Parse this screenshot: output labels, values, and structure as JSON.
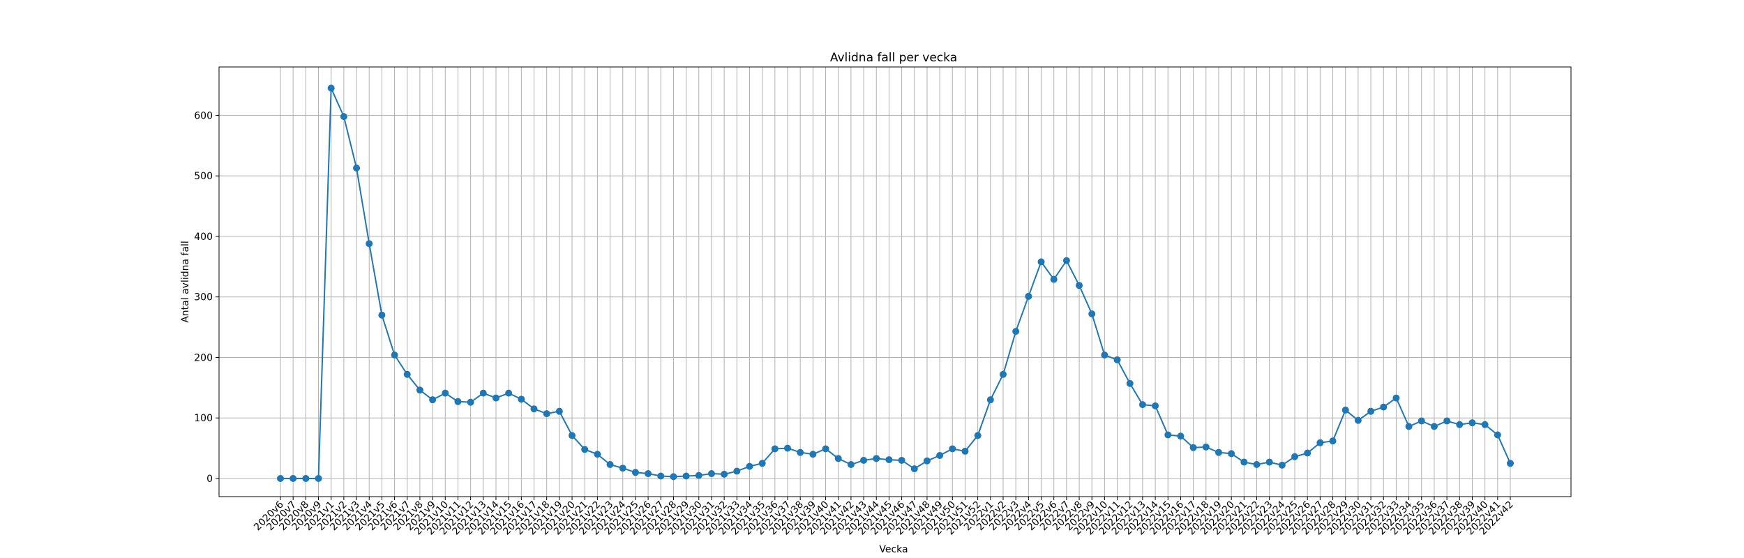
{
  "chart_data": {
    "type": "line",
    "title": "Avlidna fall per vecka",
    "xlabel": "Vecka",
    "ylabel": "Antal avlidna fall",
    "ylim": [
      -30,
      680
    ],
    "yticks": [
      0,
      100,
      200,
      300,
      400,
      500,
      600
    ],
    "grid": true,
    "line_color": "#1f77b4",
    "categories": [
      "2020v6",
      "2020v7",
      "2020v8",
      "2020v9",
      "2021v1",
      "2021v2",
      "2021v3",
      "2021v4",
      "2021v5",
      "2021v6",
      "2021v7",
      "2021v8",
      "2021v9",
      "2021v10",
      "2021v11",
      "2021v12",
      "2021v13",
      "2021v14",
      "2021v15",
      "2021v16",
      "2021v17",
      "2021v18",
      "2021v19",
      "2021v20",
      "2021v21",
      "2021v22",
      "2021v23",
      "2021v24",
      "2021v25",
      "2021v26",
      "2021v27",
      "2021v28",
      "2021v29",
      "2021v30",
      "2021v31",
      "2021v32",
      "2021v33",
      "2021v34",
      "2021v35",
      "2021v36",
      "2021v37",
      "2021v38",
      "2021v39",
      "2021v40",
      "2021v41",
      "2021v42",
      "2021v43",
      "2021v44",
      "2021v45",
      "2021v46",
      "2021v47",
      "2021v48",
      "2021v49",
      "2021v50",
      "2021v51",
      "2021v52",
      "2022v1",
      "2022v2",
      "2022v3",
      "2022v4",
      "2022v5",
      "2022v6",
      "2022v7",
      "2022v8",
      "2022v9",
      "2022v10",
      "2022v11",
      "2022v12",
      "2022v13",
      "2022v14",
      "2022v15",
      "2022v16",
      "2022v17",
      "2022v18",
      "2022v19",
      "2022v20",
      "2022v21",
      "2022v22",
      "2022v23",
      "2022v24",
      "2022v25",
      "2022v26",
      "2022v27",
      "2022v28",
      "2022v29",
      "2022v30",
      "2022v31",
      "2022v32",
      "2022v33",
      "2022v34",
      "2022v35",
      "2022v36",
      "2022v37",
      "2022v38",
      "2022v39",
      "2022v40",
      "2022v41",
      "2022v42"
    ],
    "values": [
      0,
      0,
      0,
      0,
      645,
      598,
      513,
      388,
      270,
      204,
      172,
      146,
      130,
      141,
      127,
      126,
      141,
      133,
      141,
      131,
      115,
      107,
      111,
      71,
      48,
      40,
      23,
      17,
      10,
      8,
      4,
      3,
      4,
      5,
      8,
      7,
      12,
      20,
      25,
      49,
      50,
      43,
      40,
      49,
      33,
      23,
      30,
      33,
      31,
      30,
      16,
      29,
      38,
      49,
      45,
      71,
      130,
      172,
      243,
      301,
      358,
      329,
      360,
      319,
      272,
      204,
      196,
      157,
      122,
      120,
      72,
      70,
      51,
      52,
      43,
      41,
      27,
      23,
      27,
      22,
      36,
      42,
      59,
      62,
      113,
      96,
      111,
      118,
      133,
      86,
      95,
      86,
      95,
      89,
      92,
      89,
      72,
      25
    ]
  }
}
